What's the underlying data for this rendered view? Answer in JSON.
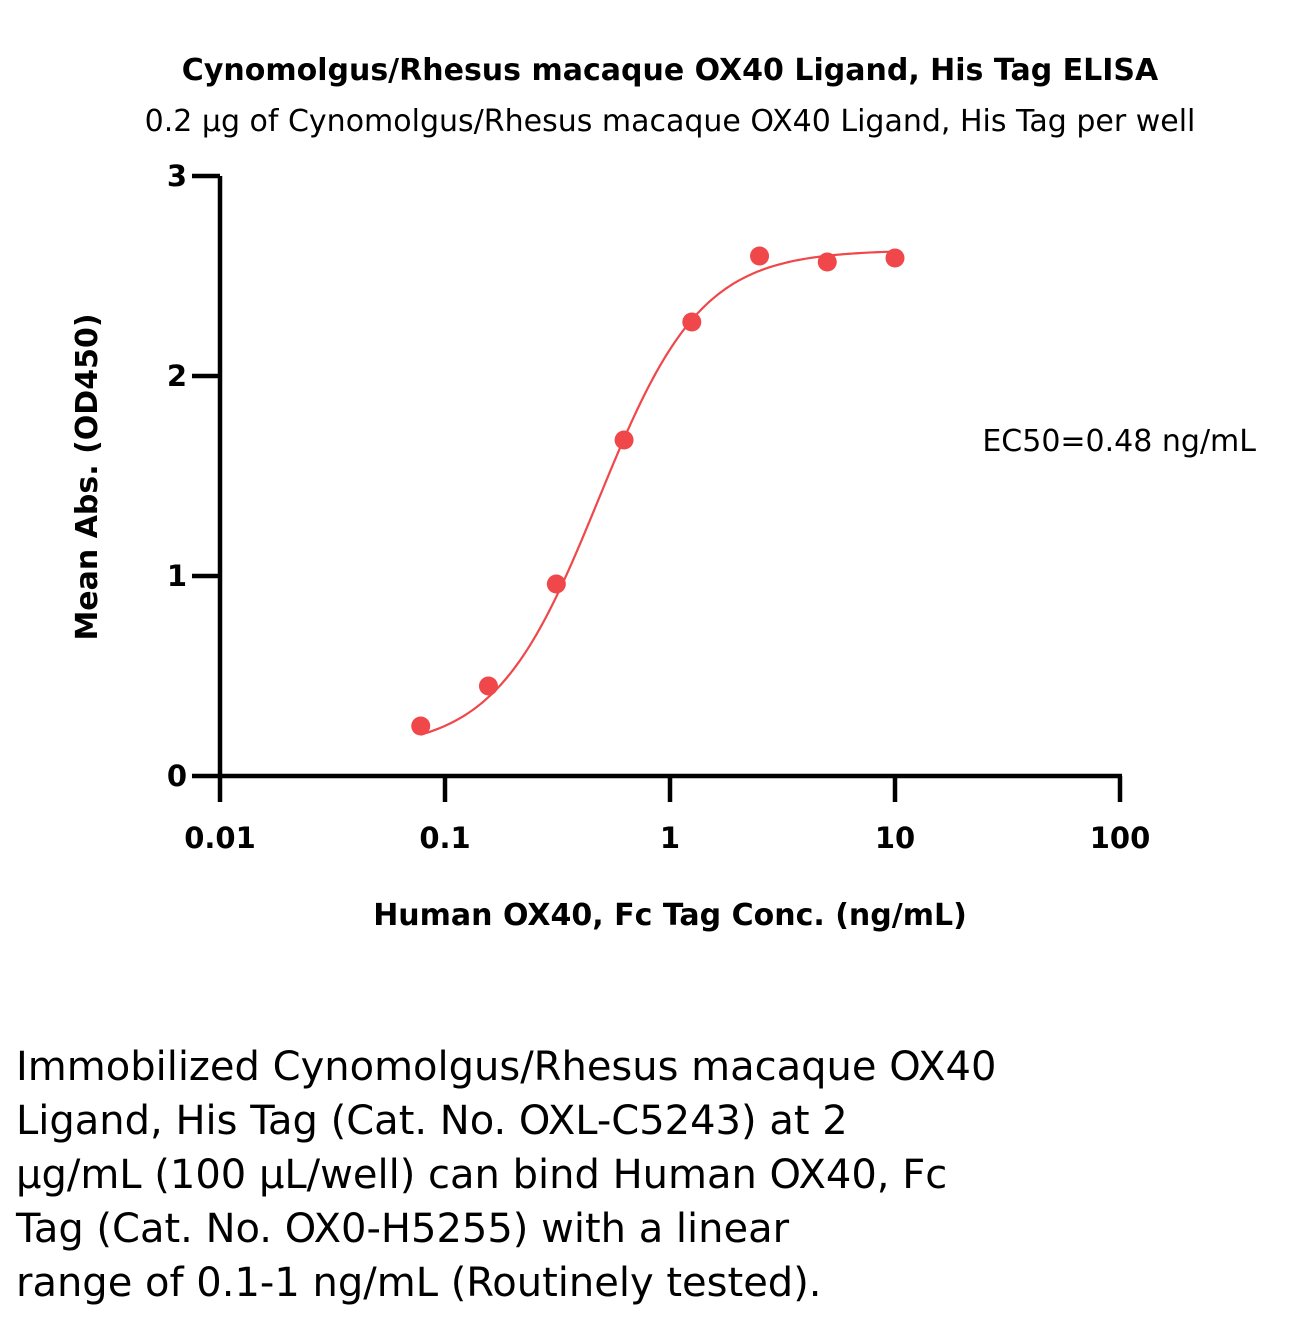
{
  "chart_data": {
    "type": "scatter",
    "title": "Cynomolgus/Rhesus macaque OX40 Ligand, His Tag  ELISA",
    "subtitle": "0.2 μg of Cynomolgus/Rhesus macaque OX40 Ligand, His Tag  per well",
    "xlabel": "Human OX40, Fc Tag Conc. (ng/mL)",
    "ylabel": "Mean Abs. (OD450)",
    "x_scale": "log",
    "xlim": [
      0.01,
      100
    ],
    "ylim": [
      0,
      3
    ],
    "x_ticks": [
      0.01,
      0.1,
      1,
      10,
      100
    ],
    "x_tick_labels": [
      "0.01",
      "0.1",
      "1",
      "10",
      "100"
    ],
    "y_ticks": [
      0,
      1,
      2,
      3
    ],
    "y_tick_labels": [
      "0",
      "1",
      "2",
      "3"
    ],
    "grid": false,
    "color": "#f0474a",
    "series": [
      {
        "x": [
          0.078,
          0.156,
          0.3125,
          0.625,
          1.25,
          2.5,
          5,
          10
        ],
        "y": [
          0.25,
          0.45,
          0.96,
          1.68,
          2.27,
          2.6,
          2.57,
          2.59
        ]
      }
    ],
    "fit_curve": {
      "model": "4PL",
      "bottom": 0.13,
      "top": 2.63,
      "ec50": 0.48,
      "hill": 1.9,
      "x_range": [
        0.078,
        10
      ]
    },
    "annotations": [
      {
        "text": "EC50=0.48 ng/mL"
      }
    ]
  },
  "caption": {
    "lines": [
      "Immobilized Cynomolgus/Rhesus macaque OX40",
      "Ligand, His Tag (Cat. No. OXL-C5243) at 2",
      "μg/mL (100 μL/well) can bind Human OX40, Fc",
      "Tag (Cat. No. OX0-H5255) with a linear",
      "range of 0.1-1 ng/mL (Routinely tested)."
    ]
  }
}
